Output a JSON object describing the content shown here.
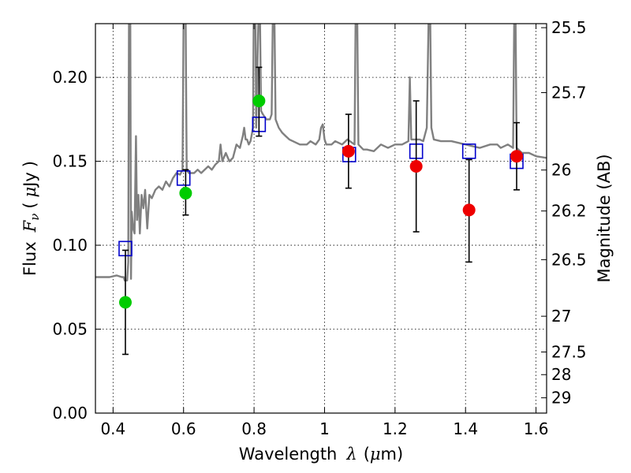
{
  "chart_data": {
    "type": "scatter",
    "title": "",
    "xlabel": "Wavelength",
    "xlabel_symbol": "λ",
    "xlabel_unit_open": "(",
    "xlabel_unit_mu": "μ",
    "xlabel_unit_rest": "m)",
    "ylabel": "Flux",
    "ylabel_symbol": "F",
    "ylabel_subscript": "ν",
    "ylabel_unit_open": "(",
    "ylabel_unit_mu": "μ",
    "ylabel_unit_rest": "Jy",
    "ylabel_unit_close": ")",
    "y2label": "Magnitude (AB)",
    "xlim": [
      0.35,
      1.63
    ],
    "ylim": [
      0.0,
      0.232
    ],
    "grid": true,
    "x_ticks": [
      0.4,
      0.6,
      0.8,
      1.0,
      1.2,
      1.4,
      1.6
    ],
    "x_tick_labels": [
      "0.4",
      "0.6",
      "0.8",
      "1",
      "1.2",
      "1.4",
      "1.6"
    ],
    "y_ticks": [
      0.0,
      0.05,
      0.1,
      0.15,
      0.2
    ],
    "y_tick_labels": [
      "0.00",
      "0.05",
      "0.10",
      "0.15",
      "0.20"
    ],
    "mag_ticks": [
      {
        "label": "25.5",
        "flux": 0.2296
      },
      {
        "label": "25.7",
        "flux": 0.1909
      },
      {
        "label": "26",
        "flux": 0.1448
      },
      {
        "label": "26.2",
        "flux": 0.1204
      },
      {
        "label": "26.5",
        "flux": 0.0914
      },
      {
        "label": "27",
        "flux": 0.0577
      },
      {
        "label": "27.5",
        "flux": 0.0364
      },
      {
        "label": "28",
        "flux": 0.0229
      },
      {
        "label": "29",
        "flux": 0.0091
      }
    ],
    "series": [
      {
        "kind": "line",
        "color": "#808080",
        "points": [
          [
            0.35,
            0.081
          ],
          [
            0.37,
            0.081
          ],
          [
            0.39,
            0.081
          ],
          [
            0.41,
            0.082
          ],
          [
            0.425,
            0.081
          ],
          [
            0.43,
            0.081
          ],
          [
            0.433,
            0.079
          ],
          [
            0.437,
            0.079
          ],
          [
            0.44,
            0.079
          ],
          [
            0.443,
            0.09
          ],
          [
            0.445,
            0.2325
          ],
          [
            0.449,
            0.2325
          ],
          [
            0.451,
            0.08
          ],
          [
            0.453,
            0.12
          ],
          [
            0.457,
            0.11
          ],
          [
            0.461,
            0.107
          ],
          [
            0.465,
            0.165
          ],
          [
            0.468,
            0.115
          ],
          [
            0.472,
            0.13
          ],
          [
            0.476,
            0.107
          ],
          [
            0.481,
            0.13
          ],
          [
            0.486,
            0.122
          ],
          [
            0.491,
            0.133
          ],
          [
            0.497,
            0.11
          ],
          [
            0.503,
            0.13
          ],
          [
            0.51,
            0.128
          ],
          [
            0.52,
            0.133
          ],
          [
            0.53,
            0.135
          ],
          [
            0.54,
            0.133
          ],
          [
            0.55,
            0.138
          ],
          [
            0.56,
            0.135
          ],
          [
            0.57,
            0.14
          ],
          [
            0.58,
            0.143
          ],
          [
            0.59,
            0.142
          ],
          [
            0.597,
            0.145
          ],
          [
            0.6,
            0.2325
          ],
          [
            0.606,
            0.2325
          ],
          [
            0.609,
            0.145
          ],
          [
            0.615,
            0.143
          ],
          [
            0.63,
            0.143
          ],
          [
            0.64,
            0.145
          ],
          [
            0.65,
            0.143
          ],
          [
            0.66,
            0.145
          ],
          [
            0.67,
            0.147
          ],
          [
            0.68,
            0.145
          ],
          [
            0.69,
            0.148
          ],
          [
            0.7,
            0.15
          ],
          [
            0.705,
            0.16
          ],
          [
            0.71,
            0.15
          ],
          [
            0.72,
            0.155
          ],
          [
            0.73,
            0.15
          ],
          [
            0.74,
            0.152
          ],
          [
            0.75,
            0.16
          ],
          [
            0.76,
            0.158
          ],
          [
            0.768,
            0.165
          ],
          [
            0.772,
            0.17
          ],
          [
            0.776,
            0.163
          ],
          [
            0.78,
            0.163
          ],
          [
            0.785,
            0.16
          ],
          [
            0.79,
            0.162
          ],
          [
            0.797,
            0.17
          ],
          [
            0.799,
            0.2325
          ],
          [
            0.804,
            0.2325
          ],
          [
            0.806,
            0.17
          ],
          [
            0.812,
            0.2325
          ],
          [
            0.817,
            0.2325
          ],
          [
            0.82,
            0.18
          ],
          [
            0.825,
            0.178
          ],
          [
            0.835,
            0.175
          ],
          [
            0.845,
            0.175
          ],
          [
            0.85,
            0.178
          ],
          [
            0.853,
            0.2325
          ],
          [
            0.858,
            0.2325
          ],
          [
            0.861,
            0.175
          ],
          [
            0.87,
            0.17
          ],
          [
            0.88,
            0.167
          ],
          [
            0.89,
            0.165
          ],
          [
            0.9,
            0.163
          ],
          [
            0.91,
            0.162
          ],
          [
            0.93,
            0.16
          ],
          [
            0.95,
            0.16
          ],
          [
            0.96,
            0.162
          ],
          [
            0.975,
            0.16
          ],
          [
            0.985,
            0.163
          ],
          [
            0.99,
            0.17
          ],
          [
            0.995,
            0.172
          ],
          [
            1.0,
            0.163
          ],
          [
            1.005,
            0.16
          ],
          [
            1.02,
            0.16
          ],
          [
            1.03,
            0.162
          ],
          [
            1.05,
            0.16
          ],
          [
            1.065,
            0.163
          ],
          [
            1.085,
            0.16
          ],
          [
            1.088,
            0.2325
          ],
          [
            1.093,
            0.2325
          ],
          [
            1.096,
            0.16
          ],
          [
            1.11,
            0.157
          ],
          [
            1.12,
            0.157
          ],
          [
            1.14,
            0.156
          ],
          [
            1.16,
            0.16
          ],
          [
            1.18,
            0.158
          ],
          [
            1.2,
            0.16
          ],
          [
            1.22,
            0.16
          ],
          [
            1.238,
            0.162
          ],
          [
            1.242,
            0.2
          ],
          [
            1.246,
            0.163
          ],
          [
            1.26,
            0.163
          ],
          [
            1.27,
            0.163
          ],
          [
            1.28,
            0.162
          ],
          [
            1.29,
            0.17
          ],
          [
            1.295,
            0.2325
          ],
          [
            1.3,
            0.2325
          ],
          [
            1.303,
            0.17
          ],
          [
            1.31,
            0.163
          ],
          [
            1.33,
            0.162
          ],
          [
            1.36,
            0.162
          ],
          [
            1.4,
            0.16
          ],
          [
            1.44,
            0.158
          ],
          [
            1.47,
            0.16
          ],
          [
            1.49,
            0.16
          ],
          [
            1.5,
            0.158
          ],
          [
            1.52,
            0.16
          ],
          [
            1.535,
            0.158
          ],
          [
            1.538,
            0.2325
          ],
          [
            1.542,
            0.2325
          ],
          [
            1.545,
            0.158
          ],
          [
            1.56,
            0.155
          ],
          [
            1.58,
            0.155
          ],
          [
            1.6,
            0.153
          ],
          [
            1.63,
            0.152
          ]
        ]
      },
      {
        "kind": "model_squares",
        "color": "#0000cc",
        "points": [
          [
            0.435,
            0.098
          ],
          [
            0.6,
            0.14
          ],
          [
            0.814,
            0.172
          ],
          [
            1.07,
            0.154
          ],
          [
            1.26,
            0.156
          ],
          [
            1.41,
            0.156
          ],
          [
            1.545,
            0.15
          ]
        ]
      },
      {
        "kind": "observed",
        "color": "#00cc00",
        "points": [
          {
            "x": 0.435,
            "y": 0.066,
            "lo": 0.035,
            "hi": 0.097
          },
          {
            "x": 0.606,
            "y": 0.131,
            "lo": 0.118,
            "hi": 0.145
          },
          {
            "x": 0.814,
            "y": 0.186,
            "lo": 0.165,
            "hi": 0.206
          }
        ]
      },
      {
        "kind": "observed",
        "color": "#ee0000",
        "points": [
          {
            "x": 1.068,
            "y": 0.156,
            "lo": 0.134,
            "hi": 0.178
          },
          {
            "x": 1.26,
            "y": 0.147,
            "lo": 0.108,
            "hi": 0.186
          },
          {
            "x": 1.41,
            "y": 0.121,
            "lo": 0.09,
            "hi": 0.151
          },
          {
            "x": 1.545,
            "y": 0.153,
            "lo": 0.133,
            "hi": 0.173
          }
        ]
      }
    ]
  }
}
